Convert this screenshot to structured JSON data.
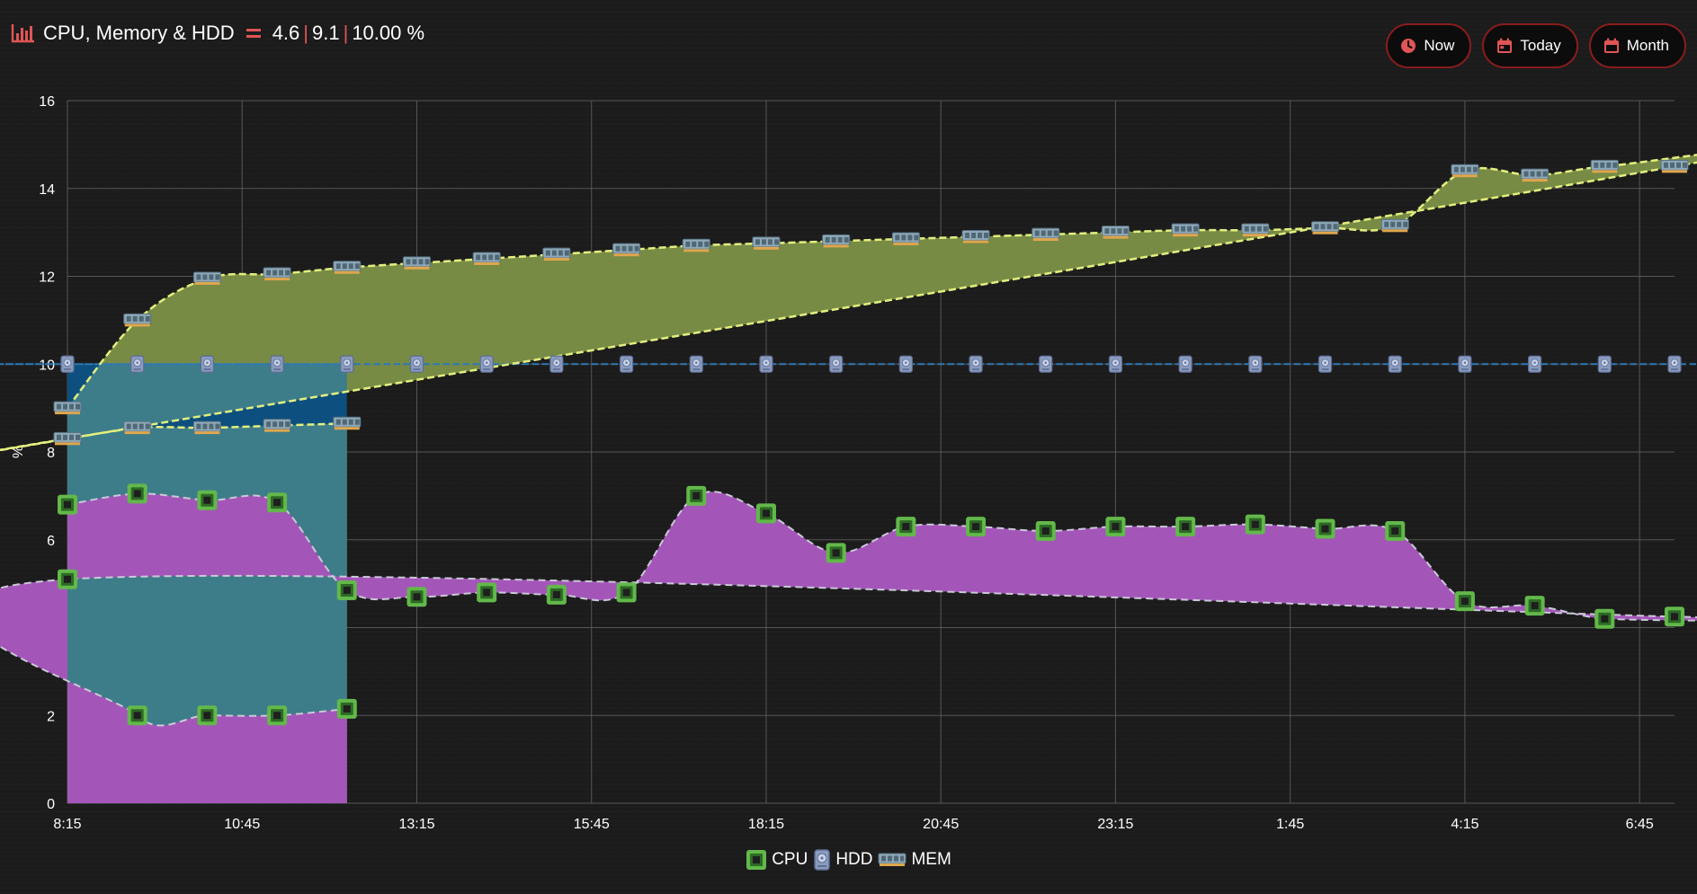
{
  "header": {
    "title": "CPU, Memory & HDD",
    "values": [
      "4.6",
      "9.1",
      "10.00 %"
    ]
  },
  "buttons": [
    {
      "label": "Now",
      "icon": "clock-icon"
    },
    {
      "label": "Today",
      "icon": "calendar-icon"
    },
    {
      "label": "Month",
      "icon": "calendar-icon"
    }
  ],
  "colors": {
    "accent": "#e05555",
    "cpu_fill": "#a356b8",
    "hdd_fill": "#3d7d8a",
    "hdd_above_fill": "#0d4f7e",
    "mem_fill": "#778b45",
    "mem_line": "#e3ef7e",
    "cpu_line": "#c9c9d6",
    "hdd_line": "#2b78b8"
  },
  "chart_data": {
    "type": "area",
    "ylabel": "%",
    "ylim": [
      0,
      16
    ],
    "yticks": [
      0,
      2,
      4,
      6,
      8,
      10,
      12,
      14,
      16
    ],
    "xlim": [
      "8:15",
      "7:15"
    ],
    "xticks": [
      "8:15",
      "10:45",
      "13:15",
      "15:45",
      "18:15",
      "20:45",
      "23:15",
      "1:45",
      "4:15",
      "6:45"
    ],
    "x": [
      "8:15",
      "9:15",
      "10:15",
      "11:15",
      "12:15",
      "13:15",
      "14:15",
      "15:15",
      "16:15",
      "17:15",
      "18:15",
      "19:15",
      "20:15",
      "21:15",
      "22:15",
      "23:15",
      "0:15",
      "1:15",
      "2:15",
      "3:15",
      "4:15",
      "5:15",
      "6:15",
      "7:15",
      "8:15",
      "9:15",
      "10:15",
      "11:15",
      "12:15"
    ],
    "series": [
      {
        "name": "CPU",
        "icon": "cpu-icon",
        "values": [
          6.8,
          7.05,
          6.9,
          6.85,
          4.85,
          4.7,
          4.8,
          4.75,
          4.8,
          7.0,
          6.6,
          5.7,
          6.3,
          6.3,
          6.2,
          6.3,
          6.3,
          6.35,
          6.25,
          6.2,
          4.6,
          4.5,
          4.2,
          4.25,
          5.1,
          2.0,
          2.0,
          2.0,
          2.15
        ]
      },
      {
        "name": "HDD",
        "icon": "hdd-icon",
        "values": [
          10,
          10,
          10,
          10,
          10,
          10,
          10,
          10,
          10,
          10,
          10,
          10,
          10,
          10,
          10,
          10,
          10,
          10,
          10,
          10,
          10,
          10,
          10,
          10,
          10,
          10,
          10,
          10,
          10
        ]
      },
      {
        "name": "MEM",
        "icon": "mem-icon",
        "values": [
          9.0,
          11.0,
          11.95,
          12.05,
          12.2,
          12.3,
          12.4,
          12.5,
          12.6,
          12.7,
          12.75,
          12.8,
          12.85,
          12.9,
          12.95,
          13.0,
          13.05,
          13.05,
          13.1,
          13.15,
          14.4,
          14.3,
          14.5,
          14.5,
          8.3,
          8.55,
          8.55,
          8.6,
          8.65
        ]
      }
    ],
    "legend": "bottom-center",
    "grid": true
  }
}
